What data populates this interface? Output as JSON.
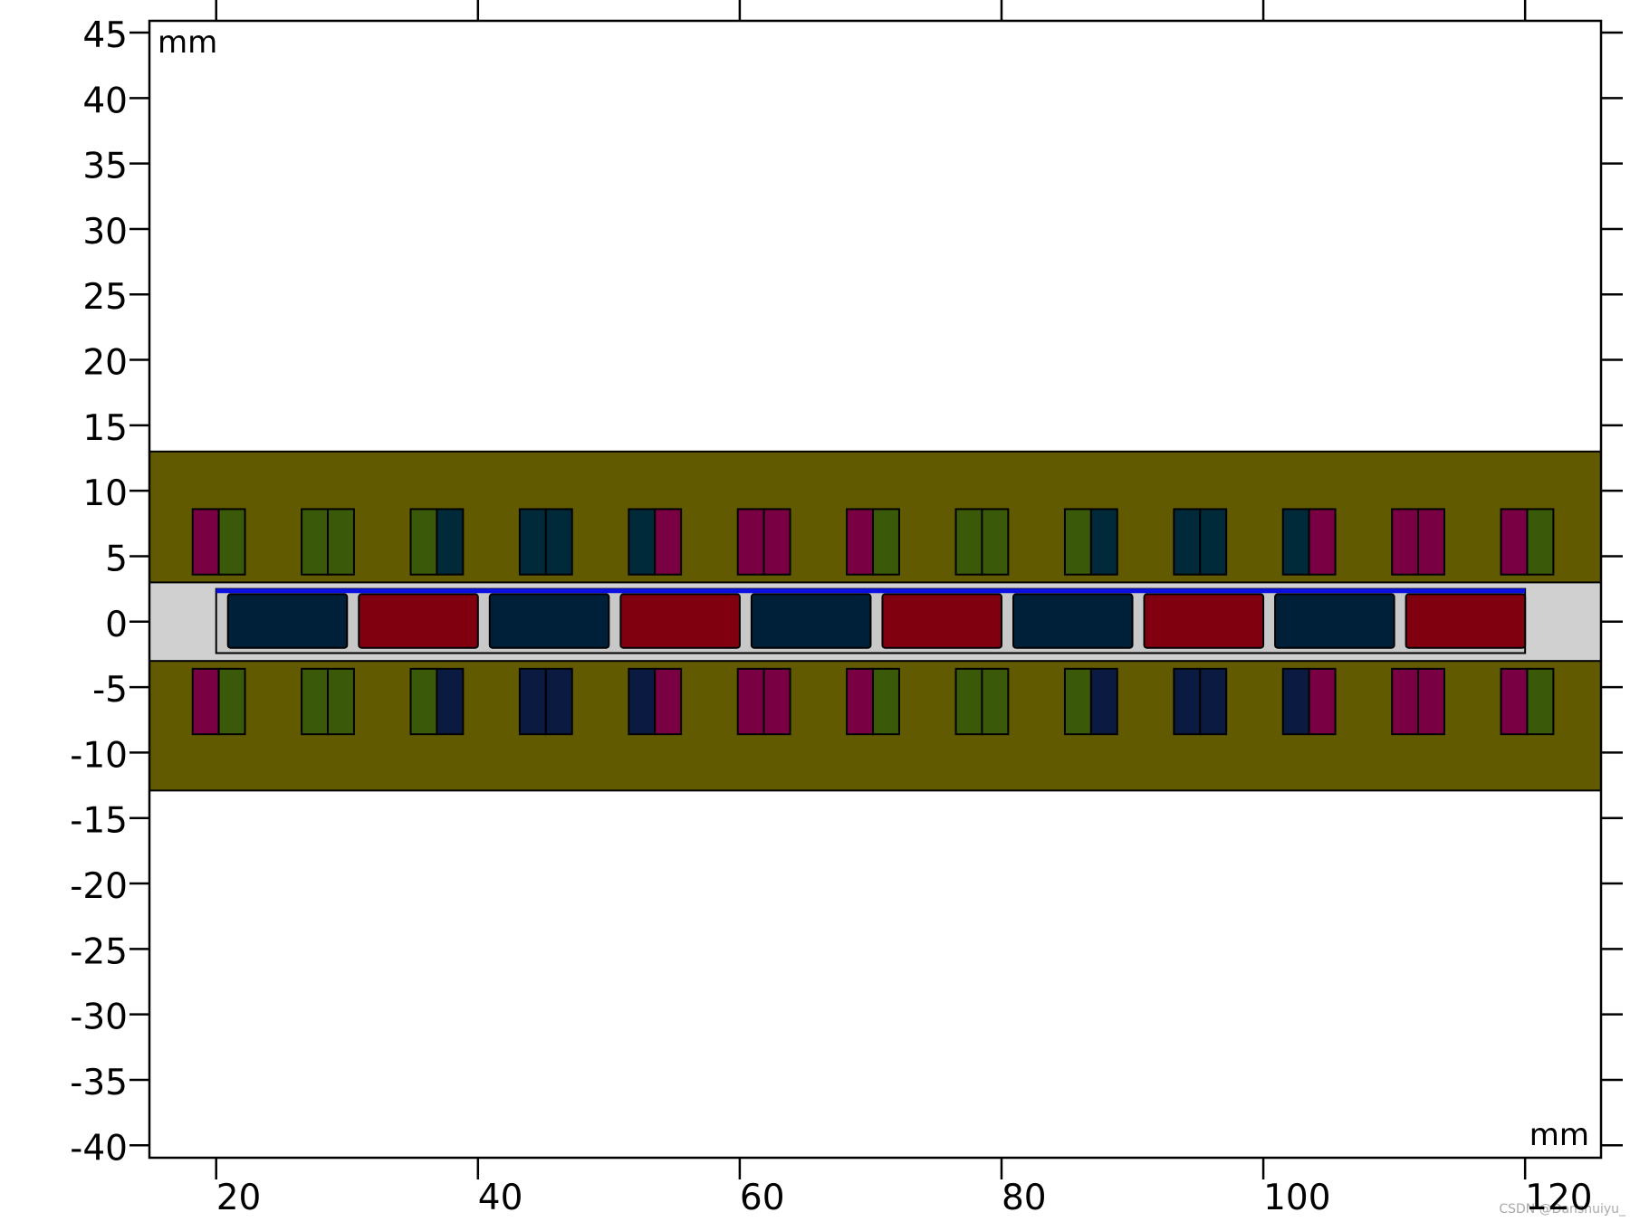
{
  "chart_data": {
    "type": "geometry",
    "x_unit": "mm",
    "y_unit": "mm",
    "xlim": [
      14.9,
      125.8
    ],
    "xticks": [
      20,
      40,
      60,
      80,
      100,
      120
    ],
    "ylim": [
      -40.95,
      45.9
    ],
    "yticks": [
      -40,
      -35,
      -30,
      -25,
      -20,
      -15,
      -10,
      -5,
      0,
      5,
      10,
      15,
      20,
      25,
      30,
      35,
      40,
      45
    ],
    "watermark": "CSDN @Danshuiyu_"
  }
}
